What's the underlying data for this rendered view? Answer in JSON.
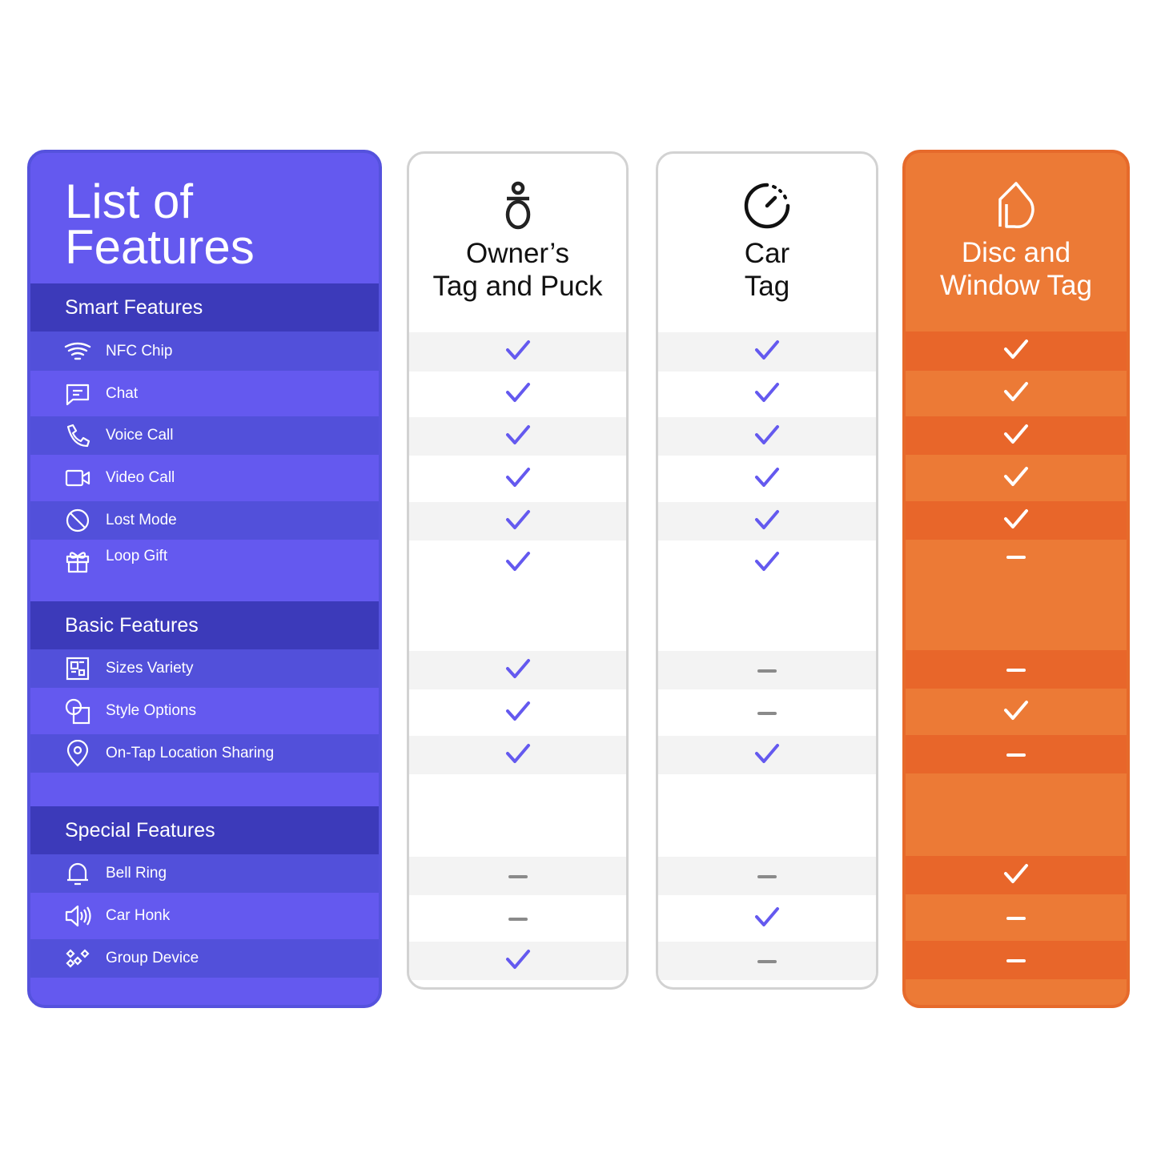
{
  "title": "List of\nFeatures",
  "colors": {
    "purple": "#6459EF",
    "purple_dark": "#3C3ABA",
    "orange": "#EC7A36",
    "orange_dark": "#E8662A",
    "check": "#6459EF",
    "dash": "#8a8a8a"
  },
  "products": [
    {
      "name": "Owner’s\nTag and Puck",
      "icon": "puck-icon"
    },
    {
      "name": "Car\nTag",
      "icon": "speedometer-icon"
    },
    {
      "name": "Disc and\nWindow Tag",
      "icon": "house-tag-icon"
    }
  ],
  "sections": [
    {
      "title": "Smart Features",
      "features": [
        {
          "label": "NFC Chip",
          "icon": "wifi-icon",
          "values": [
            true,
            true,
            true
          ]
        },
        {
          "label": "Chat",
          "icon": "chat-icon",
          "values": [
            true,
            true,
            true
          ]
        },
        {
          "label": "Voice Call",
          "icon": "phone-icon",
          "values": [
            true,
            true,
            true
          ]
        },
        {
          "label": "Video Call",
          "icon": "video-icon",
          "values": [
            true,
            true,
            true
          ]
        },
        {
          "label": "Lost Mode",
          "icon": "lost-mode-icon",
          "values": [
            true,
            true,
            true
          ]
        },
        {
          "label": "Loop Gift",
          "icon": "gift-icon",
          "values": [
            true,
            true,
            false
          ]
        }
      ]
    },
    {
      "title": "Basic Features",
      "features": [
        {
          "label": "Sizes Variety",
          "icon": "sizes-icon",
          "values": [
            true,
            false,
            false
          ]
        },
        {
          "label": "Style Options",
          "icon": "shapes-icon",
          "values": [
            true,
            false,
            true
          ]
        },
        {
          "label": "On-Tap Location Sharing",
          "icon": "location-pin-icon",
          "values": [
            true,
            true,
            false
          ]
        }
      ]
    },
    {
      "title": "Special Features",
      "features": [
        {
          "label": "Bell Ring",
          "icon": "bell-icon",
          "values": [
            false,
            false,
            true
          ]
        },
        {
          "label": "Car Honk",
          "icon": "speaker-icon",
          "values": [
            false,
            true,
            false
          ]
        },
        {
          "label": "Group Device",
          "icon": "group-device-icon",
          "values": [
            true,
            false,
            false
          ]
        }
      ]
    }
  ]
}
